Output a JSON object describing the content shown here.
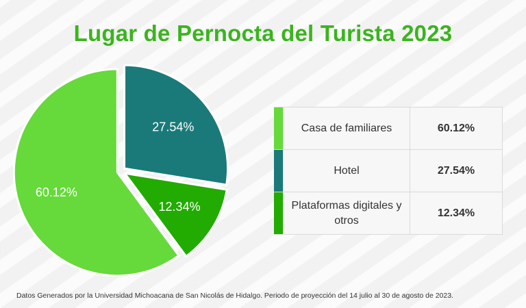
{
  "chart_data": {
    "type": "pie",
    "title": "Lugar de Pernocta del Turista 2023",
    "categories": [
      "Casa de familiares",
      "Hotel",
      "Plataformas digitales y otros"
    ],
    "values": [
      60.12,
      27.54,
      12.34
    ],
    "value_labels": [
      "60.12%",
      "27.54%",
      "12.34%"
    ],
    "colors": [
      "#66d93b",
      "#1a7a7a",
      "#22ab00"
    ],
    "legend_placement": "right"
  },
  "legend_rows": [
    {
      "label": "Casa de familiares",
      "value": "60.12%"
    },
    {
      "label": "Hotel",
      "value": "27.54%"
    },
    {
      "label": "Plataformas digitales y otros",
      "value": "12.34%"
    }
  ],
  "footer": "Datos Generados por la Universidad Michoacana de San Nicolás de Hidalgo. Periodo de proyección del 14 julio al 30 de agosto de 2023.",
  "title_color": "#3bb41e"
}
